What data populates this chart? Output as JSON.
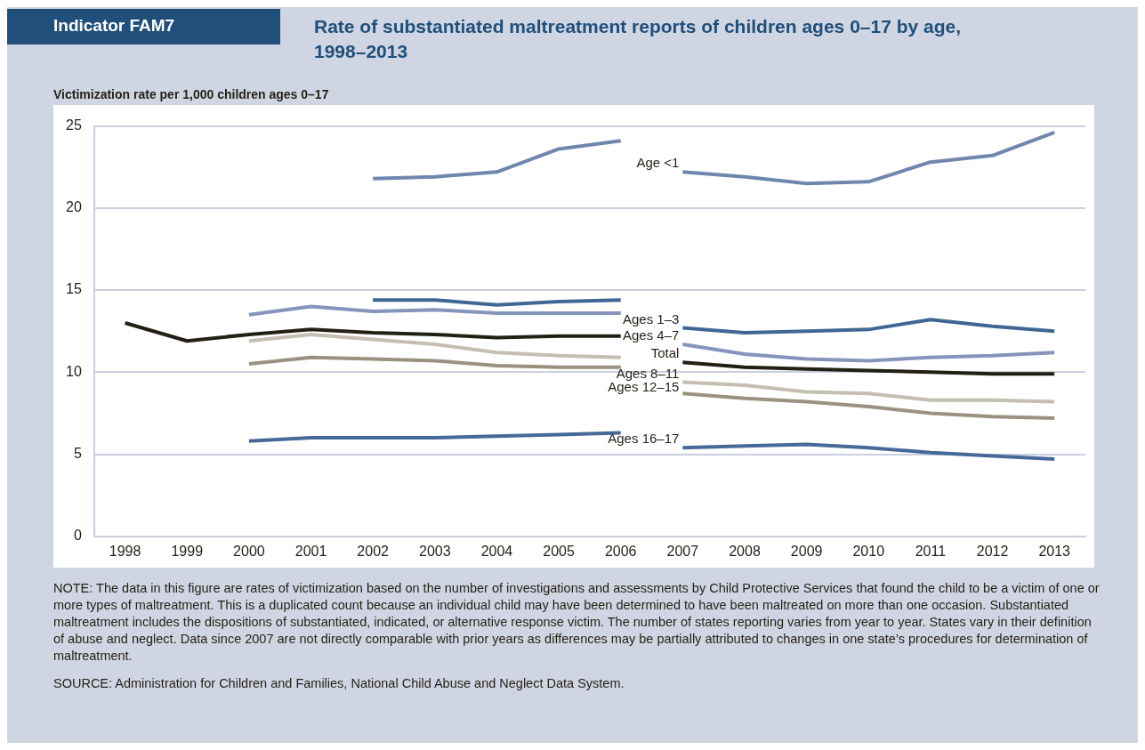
{
  "chart_data": {
    "type": "line",
    "title": "Rate of substantiated maltreatment reports of children ages 0–17 by age, 1998–2013",
    "ylabel": "Victimization rate per 1,000 children ages 0–17",
    "categories": [
      "1998",
      "1999",
      "2000",
      "2001",
      "2002",
      "2003",
      "2004",
      "2005",
      "2006",
      "2007",
      "2008",
      "2009",
      "2010",
      "2011",
      "2012",
      "2013"
    ],
    "ylim": [
      0,
      25
    ],
    "yticks": [
      0,
      5,
      10,
      15,
      20,
      25
    ],
    "grid": "y",
    "legend": false,
    "marker": "none",
    "line_style": "solid",
    "series": [
      {
        "color": "#6f86ad",
        "values": [
          null,
          null,
          null,
          null,
          21.8,
          21.9,
          22.2,
          23.6,
          24.1,
          null,
          null,
          null,
          null,
          null,
          null,
          null
        ]
      },
      {
        "name": "Age <1",
        "color": "#6f86ad",
        "values": [
          null,
          null,
          null,
          null,
          null,
          null,
          null,
          null,
          null,
          22.2,
          21.9,
          21.5,
          21.6,
          22.8,
          23.2,
          24.6
        ]
      },
      {
        "color": "#3f6794",
        "values": [
          null,
          null,
          null,
          null,
          14.4,
          14.4,
          14.1,
          14.3,
          14.4,
          null,
          null,
          null,
          null,
          null,
          null,
          null
        ]
      },
      {
        "name": "Ages 1–3",
        "color": "#3f6794",
        "values": [
          null,
          null,
          null,
          null,
          null,
          null,
          null,
          null,
          null,
          12.7,
          12.4,
          12.5,
          12.6,
          13.2,
          12.8,
          12.5
        ]
      },
      {
        "color": "#8494bb",
        "values": [
          null,
          null,
          13.5,
          14.0,
          13.7,
          13.8,
          13.6,
          13.6,
          13.6,
          null,
          null,
          null,
          null,
          null,
          null,
          null
        ]
      },
      {
        "name": "Ages 4–7",
        "color": "#8494bb",
        "values": [
          null,
          null,
          null,
          null,
          null,
          null,
          null,
          null,
          null,
          11.7,
          11.1,
          10.8,
          10.7,
          10.9,
          11.0,
          11.2
        ]
      },
      {
        "color": "#231f14",
        "values": [
          13.0,
          11.9,
          12.3,
          12.6,
          12.4,
          12.3,
          12.1,
          12.2,
          12.2,
          null,
          null,
          null,
          null,
          null,
          null,
          null
        ]
      },
      {
        "name": "Total",
        "color": "#231f14",
        "values": [
          null,
          null,
          null,
          null,
          null,
          null,
          null,
          null,
          null,
          10.6,
          10.3,
          10.2,
          10.1,
          10.0,
          9.9,
          9.9
        ]
      },
      {
        "color": "#c4bfb0",
        "values": [
          null,
          null,
          11.9,
          12.3,
          12.0,
          11.7,
          11.2,
          11.0,
          10.9,
          null,
          null,
          null,
          null,
          null,
          null,
          null
        ]
      },
      {
        "name": "Ages 8–11",
        "color": "#c4bfb0",
        "values": [
          null,
          null,
          null,
          null,
          null,
          null,
          null,
          null,
          null,
          9.4,
          9.2,
          8.8,
          8.7,
          8.3,
          8.3,
          8.2
        ]
      },
      {
        "color": "#99927f",
        "values": [
          null,
          null,
          10.5,
          10.9,
          10.8,
          10.7,
          10.4,
          10.3,
          10.3,
          null,
          null,
          null,
          null,
          null,
          null,
          null
        ]
      },
      {
        "name": "Ages 12–15",
        "color": "#99927f",
        "values": [
          null,
          null,
          null,
          null,
          null,
          null,
          null,
          null,
          null,
          8.7,
          8.4,
          8.2,
          7.9,
          7.5,
          7.3,
          7.2
        ]
      },
      {
        "color": "#46699a",
        "values": [
          null,
          null,
          5.8,
          6.0,
          6.0,
          6.0,
          6.1,
          6.2,
          6.3,
          null,
          null,
          null,
          null,
          null,
          null,
          null
        ]
      },
      {
        "name": "Ages 16–17",
        "color": "#46699a",
        "values": [
          null,
          null,
          null,
          null,
          null,
          null,
          null,
          null,
          null,
          5.4,
          5.5,
          5.6,
          5.4,
          5.1,
          4.9,
          4.7
        ]
      }
    ],
    "annotations": [
      "Indicator FAM7",
      "NOTE: The data in this figure are rates of victimization based on the number of investigations and assessments by Child Protective Services that found the child to be a victim of one or more types of maltreatment. This is a duplicated count because an individual child may have been determined to have been maltreated on more than one occasion. Substantiated maltreatment includes the dispositions of substantiated, indicated, or alternative response victim. The number of states reporting varies from year to year. States vary in their definition of abuse and neglect. Data since 2007 are not directly comparable with prior years as differences may be partially attributed to changes in one state’s procedures for determination of maltreatment.",
      "SOURCE: Administration for Children and Families, National Child Abuse and Neglect Data System."
    ]
  }
}
